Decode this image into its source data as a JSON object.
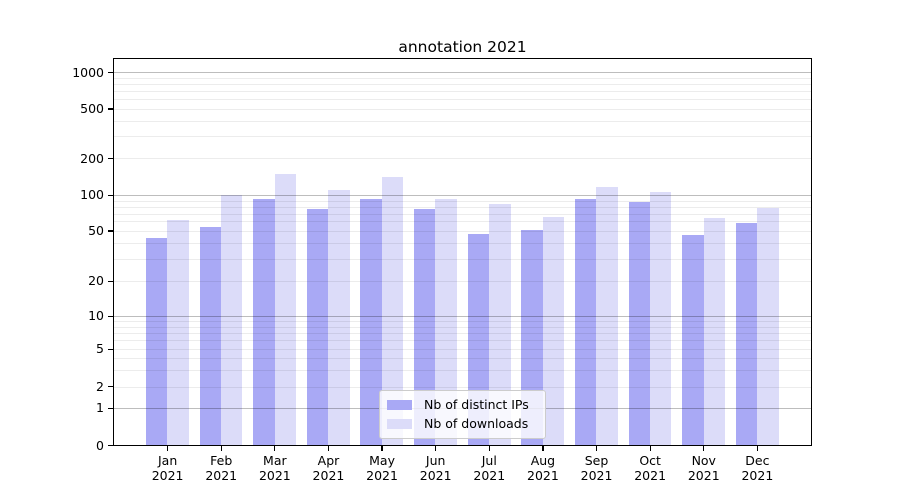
{
  "chart_data": {
    "type": "bar",
    "title": "annotation 2021",
    "months": [
      "Jan",
      "Feb",
      "Mar",
      "Apr",
      "May",
      "Jun",
      "Jul",
      "Aug",
      "Sep",
      "Oct",
      "Nov",
      "Dec"
    ],
    "year_label": "2021",
    "categories": [
      "Jan 2021",
      "Feb 2021",
      "Mar 2021",
      "Apr 2021",
      "May 2021",
      "Jun 2021",
      "Jul 2021",
      "Aug 2021",
      "Sep 2021",
      "Oct 2021",
      "Nov 2021",
      "Dec 2021"
    ],
    "series": [
      {
        "name": "Nb of distinct IPs",
        "key": "distinct-ips",
        "color": "#a9a9f5",
        "values": [
          44,
          54,
          92,
          76,
          93,
          76,
          47,
          51,
          92,
          87,
          46,
          58
        ]
      },
      {
        "name": "Nb of downloads",
        "key": "downloads",
        "color": "#dcdcf9",
        "values": [
          62,
          100,
          150,
          110,
          140,
          93,
          84,
          65,
          117,
          106,
          64,
          78
        ]
      }
    ],
    "yscale": "symlog",
    "y_ticks": [
      0,
      1,
      2,
      5,
      10,
      20,
      50,
      100,
      200,
      500,
      1000
    ],
    "y_minor_gridlines": [
      2,
      3,
      4,
      5,
      6,
      7,
      8,
      9,
      20,
      30,
      40,
      50,
      60,
      70,
      80,
      90,
      200,
      300,
      400,
      500,
      600,
      700,
      800,
      900
    ],
    "y_major_gridlines": [
      1,
      10,
      100,
      1000
    ],
    "ylim": [
      0,
      1300
    ],
    "legend": {
      "position": "lower center",
      "entries": [
        "Nb of distinct IPs",
        "Nb of downloads"
      ]
    },
    "grid": "on"
  }
}
